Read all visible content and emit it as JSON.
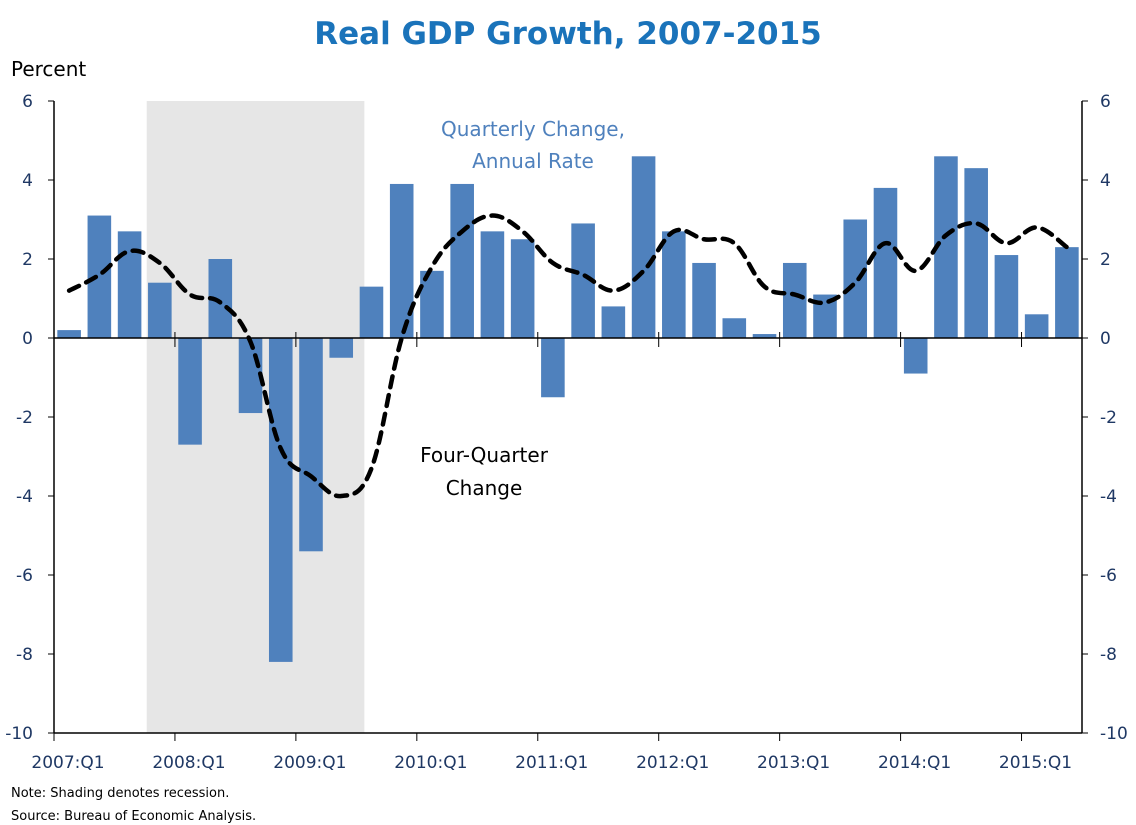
{
  "chart_data": {
    "type": "bar",
    "title": "Real GDP Growth, 2007-2015",
    "ylabel": "Percent",
    "xlabel": "",
    "ylim": [
      -10,
      6
    ],
    "yticks": [
      6,
      4,
      2,
      0,
      -2,
      -4,
      -6,
      -8,
      -10
    ],
    "yticks_right": [
      6,
      4,
      2,
      0,
      -2,
      -4,
      -6,
      -8,
      -10
    ],
    "xtick_labels": [
      "2007:Q1",
      "2008:Q1",
      "2009:Q1",
      "2010:Q1",
      "2011:Q1",
      "2012:Q1",
      "2013:Q1",
      "2014:Q1",
      "2015:Q1"
    ],
    "xtick_quarter_index": [
      0,
      4,
      8,
      12,
      16,
      20,
      24,
      28,
      32
    ],
    "categories": [
      "2007:Q1",
      "2007:Q2",
      "2007:Q3",
      "2007:Q4",
      "2008:Q1",
      "2008:Q2",
      "2008:Q3",
      "2008:Q4",
      "2009:Q1",
      "2009:Q2",
      "2009:Q3",
      "2009:Q4",
      "2010:Q1",
      "2010:Q2",
      "2010:Q3",
      "2010:Q4",
      "2011:Q1",
      "2011:Q2",
      "2011:Q3",
      "2011:Q4",
      "2012:Q1",
      "2012:Q2",
      "2012:Q3",
      "2012:Q4",
      "2013:Q1",
      "2013:Q2",
      "2013:Q3",
      "2013:Q4",
      "2014:Q1",
      "2014:Q2",
      "2014:Q3",
      "2014:Q4",
      "2015:Q1",
      "2015:Q2"
    ],
    "series": [
      {
        "name": "Quarterly Change, Annual Rate",
        "type": "bar",
        "color": "#4F81BD",
        "values": [
          0.2,
          3.1,
          2.7,
          1.4,
          -2.7,
          2.0,
          -1.9,
          -8.2,
          -5.4,
          -0.5,
          1.3,
          3.9,
          1.7,
          3.9,
          2.7,
          2.5,
          -1.5,
          2.9,
          0.8,
          4.6,
          2.7,
          1.9,
          0.5,
          0.1,
          1.9,
          1.1,
          3.0,
          3.8,
          -0.9,
          4.6,
          4.3,
          2.1,
          0.6,
          2.3
        ]
      },
      {
        "name": "Four-Quarter Change",
        "type": "line",
        "style": "dashed",
        "color": "#000000",
        "values": [
          1.2,
          1.6,
          2.2,
          1.9,
          1.1,
          0.9,
          -0.1,
          -2.8,
          -3.5,
          -4.0,
          -3.3,
          0.0,
          1.8,
          2.7,
          3.1,
          2.7,
          1.9,
          1.6,
          1.2,
          1.7,
          2.7,
          2.5,
          2.4,
          1.3,
          1.1,
          0.9,
          1.4,
          2.4,
          1.7,
          2.6,
          2.9,
          2.4,
          2.8,
          2.3
        ]
      }
    ],
    "recession": {
      "start": "2007:Q4",
      "end": "2009:Q2",
      "start_index": 3,
      "end_index": 9,
      "color": "#E6E6E6"
    },
    "annotations": [
      {
        "text_lines": [
          "Quarterly Change,",
          "Annual Rate"
        ],
        "series": "Quarterly Change, Annual Rate",
        "color": "#4F81BD"
      },
      {
        "text_lines": [
          "Four-Quarter",
          "Change"
        ],
        "series": "Four-Quarter Change",
        "color": "#000000"
      }
    ],
    "grid": false,
    "legend": "none",
    "notes": [
      "Note: Shading denotes recession.",
      "Source: Bureau of Economic Analysis."
    ]
  }
}
